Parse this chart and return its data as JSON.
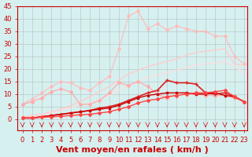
{
  "background_color": "#d6f0f0",
  "grid_color": "#aaaaaa",
  "xlabel": "Vent moyen/en rafales ( km/h )",
  "xlabel_color": "#cc0000",
  "xlabel_fontsize": 8,
  "xtick_fontsize": 6,
  "ytick_fontsize": 6,
  "ylim": [
    0,
    45
  ],
  "xlim": [
    0,
    23
  ],
  "yticks": [
    0,
    5,
    10,
    15,
    20,
    25,
    30,
    35,
    40,
    45
  ],
  "xticks": [
    0,
    1,
    2,
    3,
    4,
    5,
    6,
    7,
    8,
    9,
    10,
    11,
    12,
    13,
    14,
    15,
    16,
    17,
    18,
    19,
    20,
    21,
    22,
    23
  ],
  "x": [
    0,
    1,
    2,
    3,
    4,
    5,
    6,
    7,
    8,
    9,
    10,
    11,
    12,
    13,
    14,
    15,
    16,
    17,
    18,
    19,
    20,
    21,
    22,
    23
  ],
  "series": [
    {
      "y": [
        1.0,
        1.2,
        1.8,
        2.5,
        3.5,
        4.5,
        5.5,
        6.5,
        8.0,
        9.5,
        11.5,
        13.5,
        15.0,
        16.5,
        17.5,
        18.5,
        19.5,
        20.5,
        21.5,
        22.0,
        22.5,
        23.0,
        21.0,
        18.5
      ],
      "color": "#ffdddd",
      "linewidth": 1.2,
      "marker": null,
      "markersize": 0,
      "alpha": 0.8
    },
    {
      "y": [
        1.0,
        1.5,
        2.0,
        3.0,
        4.0,
        5.5,
        7.0,
        9.0,
        11.0,
        13.0,
        15.5,
        18.0,
        19.5,
        21.0,
        22.0,
        23.0,
        24.0,
        25.5,
        26.5,
        27.0,
        27.5,
        28.0,
        22.0,
        21.5
      ],
      "color": "#ffcccc",
      "linewidth": 1.2,
      "marker": null,
      "markersize": 0,
      "alpha": 0.85
    },
    {
      "y": [
        6.0,
        8.0,
        10.5,
        13.0,
        15.0,
        14.5,
        12.5,
        11.5,
        14.5,
        17.0,
        28.0,
        41.0,
        43.0,
        36.0,
        38.0,
        35.5,
        37.0,
        36.0,
        35.0,
        35.0,
        33.0,
        33.0,
        25.0,
        22.0
      ],
      "color": "#ffbbbb",
      "linewidth": 1.0,
      "marker": "D",
      "markersize": 2.0,
      "alpha": 0.85
    },
    {
      "y": [
        6.0,
        7.0,
        8.5,
        11.0,
        12.0,
        11.0,
        6.0,
        6.0,
        7.5,
        10.5,
        14.5,
        13.5,
        15.0,
        13.0,
        10.0,
        8.5,
        9.5,
        10.0,
        10.0,
        9.5,
        9.5,
        9.5,
        8.5,
        7.0
      ],
      "color": "#ffaaaa",
      "linewidth": 1.0,
      "marker": "D",
      "markersize": 2.0,
      "alpha": 0.9
    },
    {
      "y": [
        0.5,
        0.5,
        1.0,
        1.5,
        2.0,
        2.5,
        3.0,
        3.5,
        4.5,
        5.0,
        6.0,
        7.5,
        9.0,
        10.5,
        11.5,
        15.5,
        14.5,
        14.5,
        14.0,
        10.5,
        10.0,
        10.5,
        9.0,
        7.0
      ],
      "color": "#dd2222",
      "linewidth": 1.2,
      "marker": "+",
      "markersize": 3.5,
      "alpha": 1.0
    },
    {
      "y": [
        0.5,
        0.5,
        1.0,
        1.5,
        2.0,
        2.5,
        3.0,
        3.5,
        4.0,
        4.5,
        5.5,
        7.0,
        8.5,
        9.5,
        10.0,
        10.5,
        10.5,
        10.5,
        10.0,
        10.0,
        10.5,
        9.5,
        9.0,
        7.0
      ],
      "color": "#cc0000",
      "linewidth": 1.0,
      "marker": "s",
      "markersize": 2.0,
      "alpha": 1.0
    },
    {
      "y": [
        0.5,
        0.5,
        0.8,
        1.0,
        1.2,
        1.5,
        1.8,
        2.0,
        2.5,
        3.0,
        4.0,
        5.0,
        6.5,
        7.5,
        8.0,
        9.0,
        9.5,
        10.0,
        10.5,
        10.5,
        11.0,
        11.5,
        9.0,
        7.0
      ],
      "color": "#ff4444",
      "linewidth": 1.0,
      "marker": "D",
      "markersize": 2.0,
      "alpha": 1.0
    }
  ]
}
